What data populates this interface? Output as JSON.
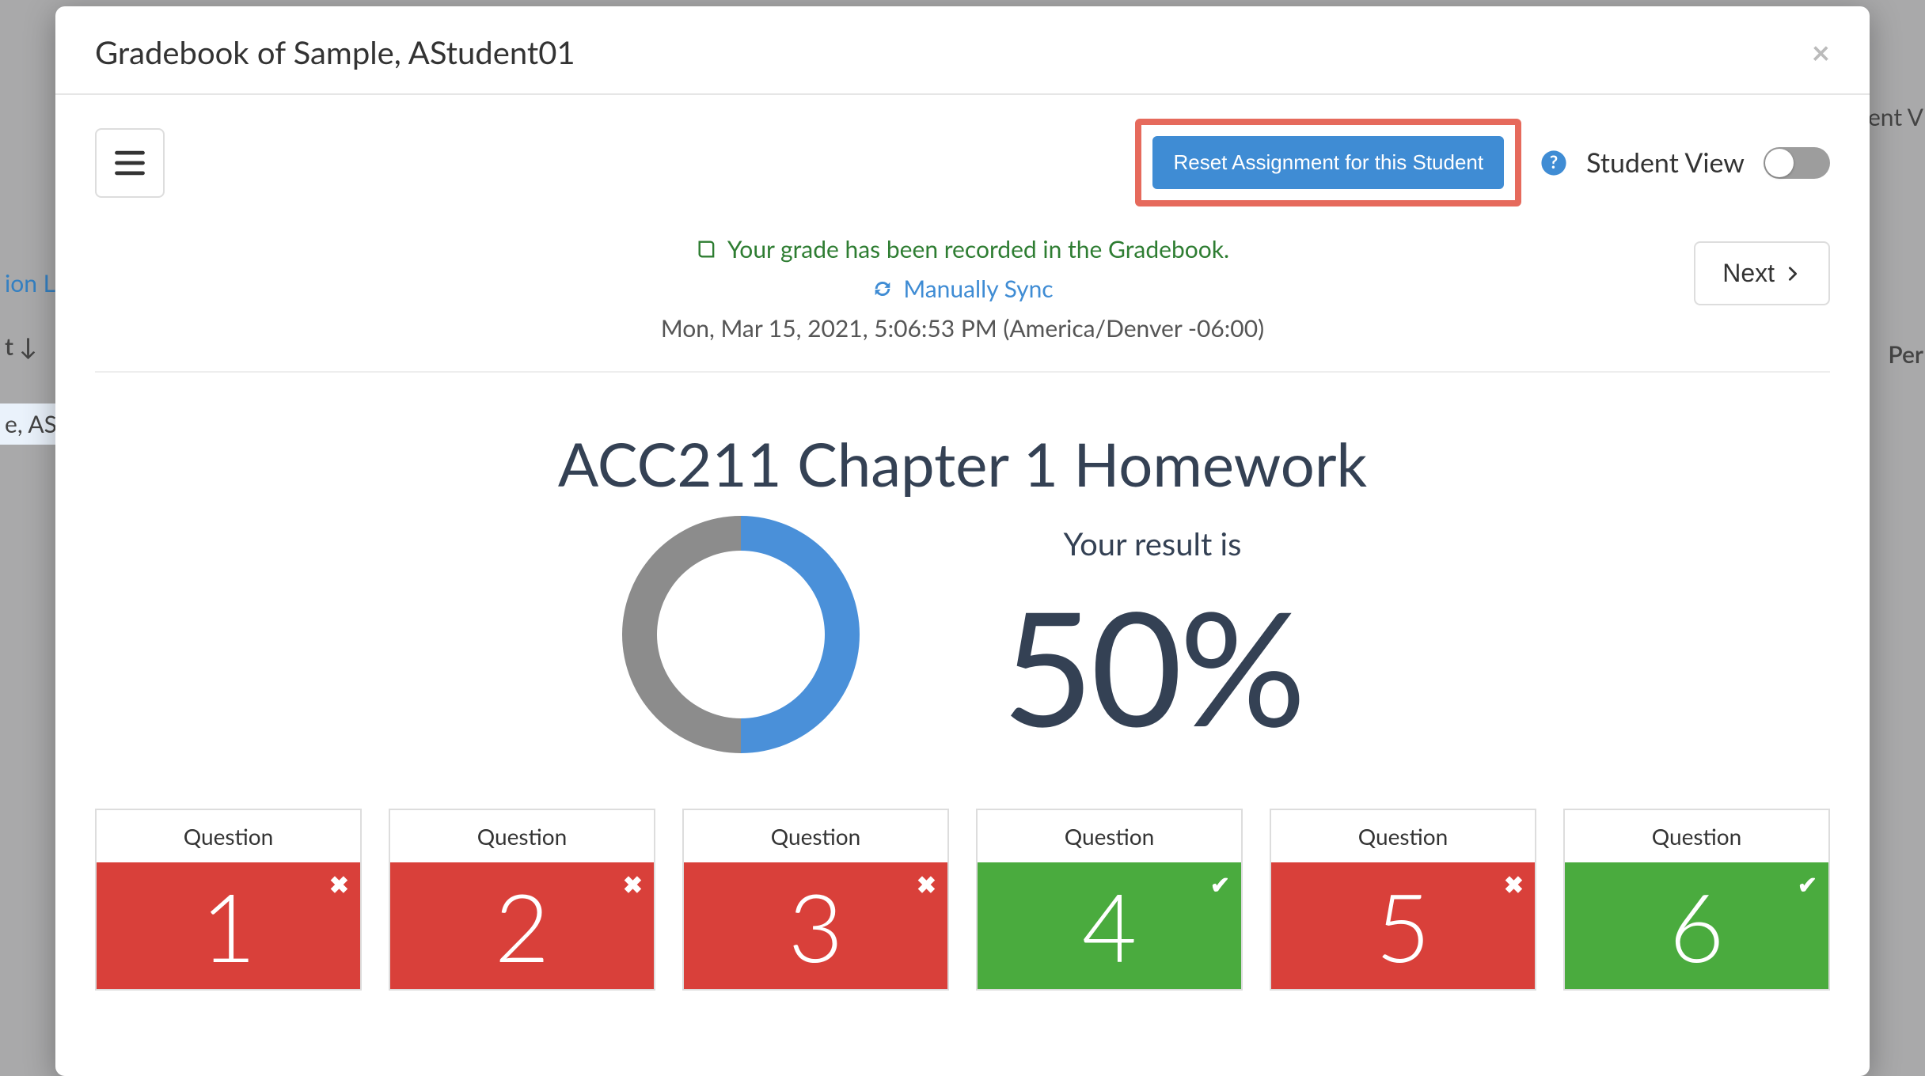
{
  "modal": {
    "title": "Gradebook of Sample, AStudent01",
    "close_glyph": "×"
  },
  "toolbar": {
    "reset_label": "Reset Assignment for this Student",
    "student_view_label": "Student View",
    "student_view_on": false,
    "next_label": "Next"
  },
  "status": {
    "recorded_msg": "Your grade has been recorded in the Gradebook.",
    "sync_label": "Manually Sync",
    "timestamp": "Mon, Mar 15, 2021, 5:06:53 PM (America/Denver -06:00)"
  },
  "assignment": {
    "title": "ACC211 Chapter 1 Homework",
    "result_label": "Your result is",
    "result_pct": "50%"
  },
  "donut": {
    "percent": 50,
    "fill_color": "#4a90d9",
    "empty_color": "#8c8c8c",
    "thickness": 44,
    "size": 300
  },
  "colors": {
    "incorrect": "#d9403a",
    "correct": "#4aab3e",
    "highlight_border": "#e66a5c",
    "primary_btn": "#3f8cd4",
    "text_dark": "#344154",
    "success_text": "#2e7d32",
    "link": "#3f8cd4"
  },
  "questions": [
    {
      "label": "Question",
      "num": "1",
      "correct": false
    },
    {
      "label": "Question",
      "num": "2",
      "correct": false
    },
    {
      "label": "Question",
      "num": "3",
      "correct": false
    },
    {
      "label": "Question",
      "num": "4",
      "correct": true
    },
    {
      "label": "Question",
      "num": "5",
      "correct": false
    },
    {
      "label": "Question",
      "num": "6",
      "correct": true
    }
  ],
  "background_fragments": {
    "link_text": "ion Li",
    "sort_text": "t ↓",
    "row_text": "e, AS",
    "right1": "ent V",
    "right2": "Per"
  }
}
